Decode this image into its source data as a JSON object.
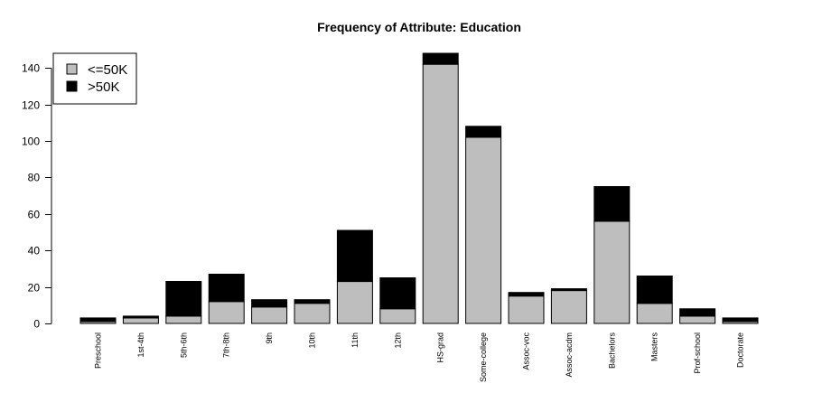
{
  "chart_data": {
    "type": "bar",
    "stacked": true,
    "title": "Frequency of Attribute: Education",
    "xlabel": "",
    "ylabel": "",
    "ylim": [
      0,
      150
    ],
    "yticks": [
      0,
      20,
      40,
      60,
      80,
      100,
      120,
      140
    ],
    "grid": false,
    "legend_position": "top-left",
    "categories": [
      "Preschool",
      "1st-4th",
      "5th-6th",
      "7th-8th",
      "9th",
      "10th",
      "11th",
      "12th",
      "HS-grad",
      "Some-college",
      "Assoc-voc",
      "Assoc-acdm",
      "Bachelors",
      "Masters",
      "Prof-school",
      "Doctorate"
    ],
    "series": [
      {
        "name": "<=50K",
        "color": "#bebebe",
        "values": [
          1,
          3,
          4,
          12,
          9,
          11,
          23,
          8,
          142,
          102,
          15,
          18,
          56,
          11,
          4,
          1
        ]
      },
      {
        "name": ">50K",
        "color": "#000000",
        "values": [
          2,
          1,
          19,
          15,
          4,
          2,
          28,
          17,
          6,
          6,
          2,
          1,
          19,
          15,
          4,
          2
        ]
      }
    ]
  }
}
